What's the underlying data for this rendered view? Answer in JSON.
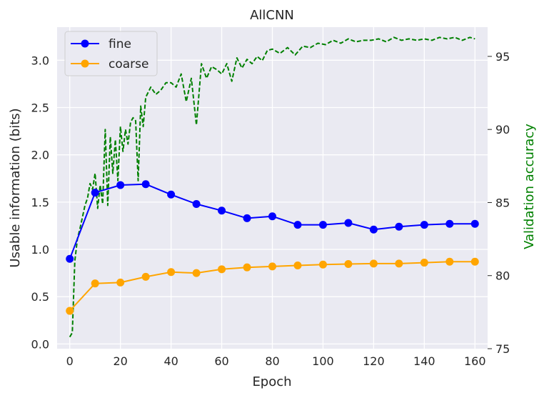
{
  "chart_data": {
    "type": "line",
    "title": "AllCNN",
    "xlabel": "Epoch",
    "ylabel": "Usable information (bits)",
    "ylabel_right": "Validation accuracy",
    "xlim": [
      -5,
      165
    ],
    "ylim": [
      -0.05,
      3.35
    ],
    "ylim_right": [
      75,
      97
    ],
    "xticks": [
      "0",
      "20",
      "40",
      "60",
      "80",
      "100",
      "120",
      "140",
      "160"
    ],
    "yticks": [
      "0.0",
      "0.5",
      "1.0",
      "1.5",
      "2.0",
      "2.5",
      "3.0"
    ],
    "yticks_right": [
      "75",
      "80",
      "85",
      "90",
      "95"
    ],
    "grid": true,
    "legend_position": "top-left",
    "series": [
      {
        "name": "fine",
        "color": "#0000ff",
        "marker": "circle",
        "x": [
          0,
          10,
          20,
          30,
          40,
          50,
          60,
          70,
          80,
          90,
          100,
          110,
          120,
          130,
          140,
          150,
          160
        ],
        "values": [
          0.9,
          1.6,
          1.68,
          1.69,
          1.58,
          1.48,
          1.41,
          1.33,
          1.35,
          1.26,
          1.26,
          1.28,
          1.21,
          1.24,
          1.26,
          1.27,
          1.27
        ]
      },
      {
        "name": "coarse",
        "color": "#ffa500",
        "marker": "circle",
        "x": [
          0,
          10,
          20,
          30,
          40,
          50,
          60,
          70,
          80,
          90,
          100,
          110,
          120,
          130,
          140,
          150,
          160
        ],
        "values": [
          0.35,
          0.64,
          0.65,
          0.71,
          0.76,
          0.75,
          0.79,
          0.81,
          0.82,
          0.83,
          0.84,
          0.845,
          0.85,
          0.85,
          0.86,
          0.87,
          0.87
        ]
      },
      {
        "color": "#008000",
        "style": "dashed",
        "axis": "right",
        "x": [
          0,
          1,
          2,
          3,
          4,
          5,
          6,
          7,
          8,
          9,
          10,
          11,
          12,
          13,
          14,
          15,
          16,
          17,
          18,
          19,
          20,
          21,
          22,
          23,
          24,
          25,
          26,
          27,
          28,
          29,
          30,
          32,
          34,
          36,
          38,
          40,
          42,
          44,
          46,
          48,
          50,
          52,
          54,
          56,
          58,
          60,
          62,
          64,
          66,
          68,
          70,
          72,
          74,
          76,
          78,
          80,
          83,
          86,
          89,
          92,
          95,
          98,
          101,
          104,
          107,
          110,
          113,
          116,
          119,
          122,
          125,
          128,
          131,
          134,
          137,
          140,
          143,
          146,
          149,
          152,
          155,
          158,
          160
        ],
        "values": [
          75.8,
          76.1,
          81,
          82.5,
          83.2,
          84,
          84.8,
          85.3,
          86.3,
          85.9,
          87.0,
          84.6,
          86.2,
          84.9,
          90.0,
          84.8,
          89.5,
          87.0,
          89.3,
          86.5,
          90.2,
          88.5,
          90.0,
          89.0,
          90.5,
          90.8,
          90.6,
          86.5,
          91.6,
          90.2,
          92.2,
          92.9,
          92.4,
          92.7,
          93.2,
          93.2,
          92.9,
          93.8,
          91.9,
          93.5,
          90.3,
          94.5,
          93.5,
          94.3,
          94.1,
          93.8,
          94.5,
          93.3,
          94.9,
          94.2,
          94.8,
          94.5,
          95.0,
          94.7,
          95.4,
          95.5,
          95.2,
          95.6,
          95.1,
          95.7,
          95.6,
          95.9,
          95.8,
          96.1,
          95.9,
          96.2,
          96.0,
          96.1,
          96.1,
          96.2,
          96.0,
          96.3,
          96.1,
          96.2,
          96.1,
          96.2,
          96.1,
          96.3,
          96.2,
          96.3,
          96.1,
          96.3,
          96.2
        ]
      }
    ]
  }
}
